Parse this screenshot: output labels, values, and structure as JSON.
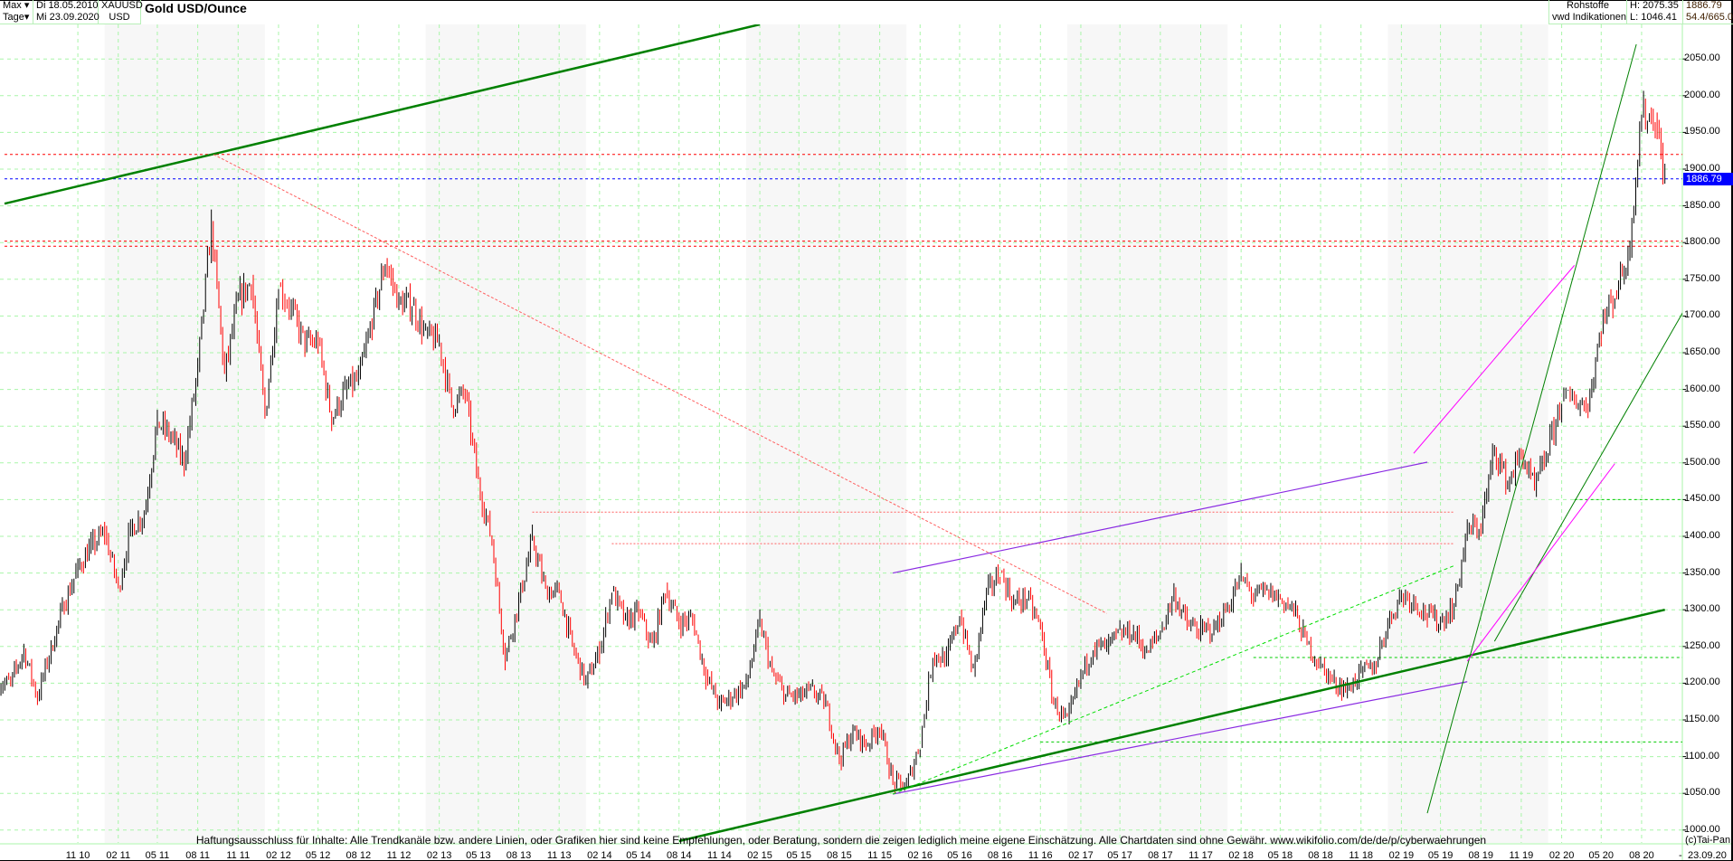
{
  "header": {
    "period": "Max",
    "interval": "Tage",
    "date_from": "Di 18.05.2010",
    "date_to": "Mi 23.09.2020",
    "symbol": "XAUUSD",
    "currency": "USD",
    "title": "Gold USD/Ounce",
    "category": "Rohstoffe",
    "source": "vwd Indikationen",
    "high": "H: 2075.35",
    "low": "L: 1046.41",
    "last": "1886.79",
    "extra": "54.4/665.0"
  },
  "footer": {
    "disclaimer": "Haftungsausschluss für Inhalte: Alle Trendkanäle bzw. andere Linien, oder Grafiken hier sind keine Empfehlungen, oder Beratung, sondern die zeigen lediglich meine eigene Einschätzung. Alle Chartdaten sind ohne Gewähr.  www.wikifolio.com/de/de/p/cyberwaehrungen",
    "copyright": "(c)Tai-Pan",
    "end_dash": "-",
    "end_date": "23.09.20"
  },
  "colors": {
    "up": "#000000",
    "down": "#ff0000",
    "grid": "#a8f5a8",
    "last": "#0000ff",
    "trend_green": "#008000",
    "support_purple": "#8a2be2",
    "magenta": "#ff00ff",
    "cyan": "#00e0ff"
  },
  "chart_data": {
    "type": "candlestick",
    "title": "Gold USD/Ounce",
    "ylim": [
      1000,
      2075
    ],
    "yticks": [
      "1000.00",
      "1050.00",
      "1100.00",
      "1150.00",
      "1200.00",
      "1250.00",
      "1300.00",
      "1350.00",
      "1400.00",
      "1450.00",
      "1500.00",
      "1550.00",
      "1600.00",
      "1650.00",
      "1700.00",
      "1750.00",
      "1800.00",
      "1850.00",
      "1900.00",
      "1950.00",
      "2000.00",
      "2050.00"
    ],
    "xticks": [
      "11 10",
      "02 11",
      "05 11",
      "08 11",
      "11 11",
      "02 12",
      "05 12",
      "08 12",
      "11 12",
      "02 13",
      "05 13",
      "08 13",
      "11 13",
      "02 14",
      "05 14",
      "08 14",
      "11 14",
      "02 15",
      "05 15",
      "08 15",
      "11 15",
      "02 16",
      "05 16",
      "08 16",
      "11 16",
      "02 17",
      "05 17",
      "08 17",
      "11 17",
      "02 18",
      "05 18",
      "08 18",
      "11 18",
      "02 19",
      "05 19",
      "08 19",
      "11 19",
      "02 20",
      "05 20",
      "08 20"
    ],
    "grid": true,
    "last_price": 1886.79,
    "monthly_close": [
      [
        "2010-05",
        1200
      ],
      [
        "2010-06",
        1245
      ],
      [
        "2010-07",
        1180
      ],
      [
        "2010-08",
        1248
      ],
      [
        "2010-09",
        1307
      ],
      [
        "2010-10",
        1357
      ],
      [
        "2010-11",
        1386
      ],
      [
        "2010-12",
        1405
      ],
      [
        "2011-01",
        1330
      ],
      [
        "2011-02",
        1410
      ],
      [
        "2011-03",
        1430
      ],
      [
        "2011-04",
        1556
      ],
      [
        "2011-05",
        1536
      ],
      [
        "2011-06",
        1500
      ],
      [
        "2011-07",
        1628
      ],
      [
        "2011-08",
        1825
      ],
      [
        "2011-09",
        1620
      ],
      [
        "2011-10",
        1722
      ],
      [
        "2011-11",
        1746
      ],
      [
        "2011-12",
        1565
      ],
      [
        "2012-01",
        1740
      ],
      [
        "2012-02",
        1710
      ],
      [
        "2012-03",
        1662
      ],
      [
        "2012-04",
        1664
      ],
      [
        "2012-05",
        1560
      ],
      [
        "2012-06",
        1598
      ],
      [
        "2012-07",
        1614
      ],
      [
        "2012-08",
        1692
      ],
      [
        "2012-09",
        1773
      ],
      [
        "2012-10",
        1719
      ],
      [
        "2012-11",
        1714
      ],
      [
        "2012-12",
        1675
      ],
      [
        "2013-01",
        1663
      ],
      [
        "2013-02",
        1578
      ],
      [
        "2013-03",
        1595
      ],
      [
        "2013-04",
        1472
      ],
      [
        "2013-05",
        1393
      ],
      [
        "2013-06",
        1234
      ],
      [
        "2013-07",
        1312
      ],
      [
        "2013-08",
        1396
      ],
      [
        "2013-09",
        1327
      ],
      [
        "2013-10",
        1323
      ],
      [
        "2013-11",
        1250
      ],
      [
        "2013-12",
        1201
      ],
      [
        "2014-01",
        1244
      ],
      [
        "2014-02",
        1326
      ],
      [
        "2014-03",
        1284
      ],
      [
        "2014-04",
        1296
      ],
      [
        "2014-05",
        1250
      ],
      [
        "2014-06",
        1327
      ],
      [
        "2014-07",
        1282
      ],
      [
        "2014-08",
        1287
      ],
      [
        "2014-09",
        1210
      ],
      [
        "2014-10",
        1171
      ],
      [
        "2014-11",
        1182
      ],
      [
        "2014-12",
        1199
      ],
      [
        "2015-01",
        1283
      ],
      [
        "2015-02",
        1213
      ],
      [
        "2015-03",
        1183
      ],
      [
        "2015-04",
        1182
      ],
      [
        "2015-05",
        1190
      ],
      [
        "2015-06",
        1172
      ],
      [
        "2015-07",
        1095
      ],
      [
        "2015-08",
        1135
      ],
      [
        "2015-09",
        1115
      ],
      [
        "2015-10",
        1142
      ],
      [
        "2015-11",
        1065
      ],
      [
        "2015-12",
        1061
      ],
      [
        "2016-01",
        1118
      ],
      [
        "2016-02",
        1238
      ],
      [
        "2016-03",
        1233
      ],
      [
        "2016-04",
        1292
      ],
      [
        "2016-05",
        1215
      ],
      [
        "2016-06",
        1322
      ],
      [
        "2016-07",
        1351
      ],
      [
        "2016-08",
        1309
      ],
      [
        "2016-09",
        1316
      ],
      [
        "2016-10",
        1276
      ],
      [
        "2016-11",
        1173
      ],
      [
        "2016-12",
        1146
      ],
      [
        "2017-01",
        1210
      ],
      [
        "2017-02",
        1249
      ],
      [
        "2017-03",
        1249
      ],
      [
        "2017-04",
        1268
      ],
      [
        "2017-05",
        1269
      ],
      [
        "2017-06",
        1242
      ],
      [
        "2017-07",
        1269
      ],
      [
        "2017-08",
        1322
      ],
      [
        "2017-09",
        1280
      ],
      [
        "2017-10",
        1271
      ],
      [
        "2017-11",
        1275
      ],
      [
        "2017-12",
        1303
      ],
      [
        "2018-01",
        1345
      ],
      [
        "2018-02",
        1318
      ],
      [
        "2018-03",
        1325
      ],
      [
        "2018-04",
        1315
      ],
      [
        "2018-05",
        1299
      ],
      [
        "2018-06",
        1253
      ],
      [
        "2018-07",
        1224
      ],
      [
        "2018-08",
        1201
      ],
      [
        "2018-09",
        1192
      ],
      [
        "2018-10",
        1215
      ],
      [
        "2018-11",
        1222
      ],
      [
        "2018-12",
        1282
      ],
      [
        "2019-01",
        1321
      ],
      [
        "2019-02",
        1313
      ],
      [
        "2019-03",
        1292
      ],
      [
        "2019-04",
        1284
      ],
      [
        "2019-05",
        1305
      ],
      [
        "2019-06",
        1409
      ],
      [
        "2019-07",
        1413
      ],
      [
        "2019-08",
        1520
      ],
      [
        "2019-09",
        1472
      ],
      [
        "2019-10",
        1513
      ],
      [
        "2019-11",
        1464
      ],
      [
        "2019-12",
        1517
      ],
      [
        "2020-01",
        1587
      ],
      [
        "2020-02",
        1585
      ],
      [
        "2020-03",
        1577
      ],
      [
        "2020-04",
        1686
      ],
      [
        "2020-05",
        1730
      ],
      [
        "2020-06",
        1781
      ],
      [
        "2020-07",
        1975
      ],
      [
        "2020-08",
        1968
      ],
      [
        "2020-09",
        1886.79
      ]
    ],
    "trendlines": [
      {
        "from": [
          "2010-05-18",
          1853
        ],
        "to": [
          "2015-02-01",
          2097
        ],
        "color": "#008000",
        "width": 2.5,
        "dash": ""
      },
      {
        "from": [
          "2014-08-01",
          985
        ],
        "to": [
          "2020-09-23",
          1300
        ],
        "color": "#008000",
        "width": 2.5,
        "dash": ""
      },
      {
        "from": [
          "2015-12-01",
          1049
        ],
        "to": [
          "2019-07-01",
          1202
        ],
        "color": "#8a2be2",
        "width": 1.2,
        "dash": ""
      },
      {
        "from": [
          "2015-12-01",
          1350
        ],
        "to": [
          "2019-04-01",
          1501
        ],
        "color": "#8a2be2",
        "width": 1.2,
        "dash": ""
      },
      {
        "from": [
          "2011-09-06",
          1920
        ],
        "to": [
          "2017-04-01",
          1295
        ],
        "color": "#ff6060",
        "width": 1,
        "dash": "3,2"
      },
      {
        "from": [
          "2019-04-01",
          1023
        ],
        "to": [
          "2020-07-20",
          2070
        ],
        "color": "#008000",
        "width": 1,
        "dash": ""
      },
      {
        "from": [
          "2019-09-01",
          1257
        ],
        "to": [
          "2021-02-01",
          1799
        ],
        "color": "#008000",
        "width": 1,
        "dash": ""
      },
      {
        "from": [
          "2019-03-01",
          1513
        ],
        "to": [
          "2020-03-01",
          1769
        ],
        "color": "#ff00ff",
        "width": 1,
        "dash": ""
      },
      {
        "from": [
          "2019-07-01",
          1230
        ],
        "to": [
          "2020-06-01",
          1499
        ],
        "color": "#ff00ff",
        "width": 1,
        "dash": ""
      },
      {
        "from": [
          "2015-12-01",
          1049
        ],
        "to": [
          "2019-06-01",
          1360
        ],
        "color": "#00dd00",
        "width": 1,
        "dash": "4,3"
      }
    ],
    "horizontal_lines": [
      {
        "price": 1920,
        "from": "2010-05-18",
        "color": "#ff0000",
        "dash": "3,3"
      },
      {
        "price": 1802,
        "from": "2010-05-18",
        "color": "#ff0000",
        "dash": "3,3"
      },
      {
        "price": 1795,
        "from": "2010-05-18",
        "color": "#ff0000",
        "dash": "3,3"
      },
      {
        "price": 1886.79,
        "from": "2010-05-18",
        "color": "#0000ff",
        "dash": "3,3"
      },
      {
        "price": 1450,
        "from": "2020-03-01",
        "color": "#00cc00",
        "dash": "3,3"
      },
      {
        "price": 1235,
        "from": "2018-03-01",
        "color": "#00cc00",
        "dash": "3,3"
      },
      {
        "price": 1120,
        "from": "2016-11-01",
        "color": "#00cc00",
        "dash": "3,3"
      },
      {
        "price": 1433,
        "from": "2013-09-01",
        "to": "2019-06-01",
        "color": "#ff6060",
        "dash": "2,2"
      },
      {
        "price": 1390,
        "from": "2014-03-01",
        "to": "2019-06-01",
        "color": "#ff6060",
        "dash": "2,2"
      }
    ]
  }
}
